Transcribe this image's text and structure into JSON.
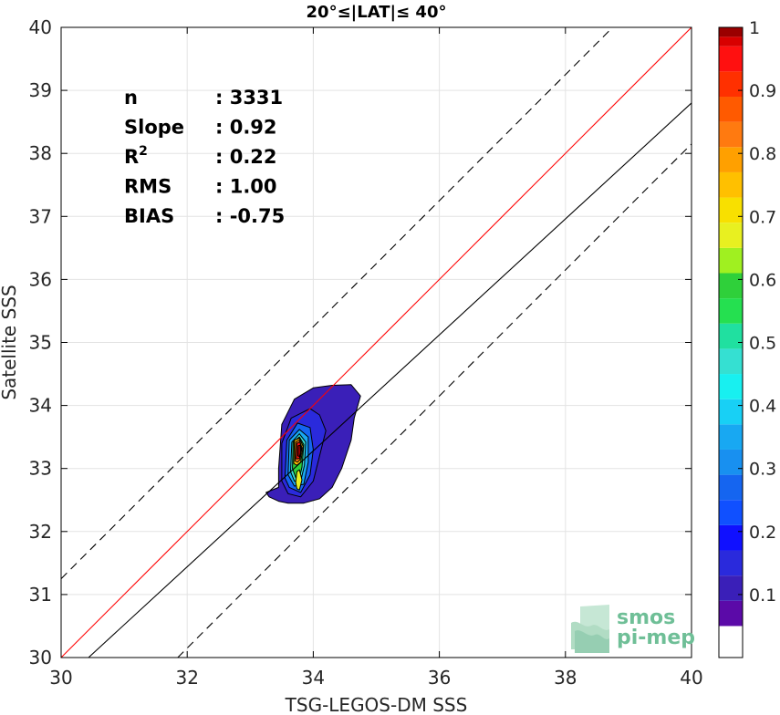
{
  "chart_data": {
    "type": "heatmap",
    "title": "20°≤|LAT|≤ 40°",
    "xlabel": "TSG-LEGOS-DM SSS",
    "ylabel": "Satellite SSS",
    "xlim": [
      30,
      40
    ],
    "ylim": [
      30,
      40
    ],
    "xticks": [
      30,
      32,
      34,
      36,
      38,
      40
    ],
    "yticks": [
      30,
      31,
      32,
      33,
      34,
      35,
      36,
      37,
      38,
      39,
      40
    ],
    "grid": true,
    "stats": [
      {
        "label": "n",
        "value": ": 3331"
      },
      {
        "label": "Slope",
        "value": ": 0.92"
      },
      {
        "label": "R",
        "sup": "2",
        "value": ": 0.22"
      },
      {
        "label": "RMS",
        "value": ": 1.00"
      },
      {
        "label": "BIAS",
        "value": ": -0.75"
      }
    ],
    "lines": {
      "identity": {
        "slope": 1,
        "intercept": 0,
        "color": "#ff0000"
      },
      "fit": {
        "slope": 0.92,
        "intercept": 2.0,
        "color": "#000000"
      },
      "envelope_upper": {
        "slope": 1,
        "intercept": 1.25,
        "style": "dashed"
      },
      "envelope_lower": {
        "slope": 1,
        "intercept": -1.85,
        "style": "dashed"
      }
    },
    "contours": [
      {
        "level": 0.05,
        "color": "#3a1fb8",
        "points": [
          [
            33.25,
            32.62
          ],
          [
            33.45,
            32.7
          ],
          [
            33.45,
            33.0
          ],
          [
            33.5,
            33.7
          ],
          [
            33.7,
            34.1
          ],
          [
            34.0,
            34.28
          ],
          [
            34.3,
            34.32
          ],
          [
            34.6,
            34.33
          ],
          [
            34.75,
            34.15
          ],
          [
            34.65,
            33.8
          ],
          [
            34.6,
            33.45
          ],
          [
            34.45,
            33.0
          ],
          [
            34.3,
            32.7
          ],
          [
            34.1,
            32.52
          ],
          [
            33.85,
            32.45
          ],
          [
            33.6,
            32.45
          ],
          [
            33.45,
            32.48
          ],
          [
            33.3,
            32.55
          ]
        ]
      },
      {
        "level": 0.1,
        "color": "#2a2adc",
        "points": [
          [
            33.5,
            32.8
          ],
          [
            33.5,
            33.4
          ],
          [
            33.65,
            33.8
          ],
          [
            33.95,
            33.95
          ],
          [
            34.1,
            33.85
          ],
          [
            34.2,
            33.6
          ],
          [
            34.1,
            33.2
          ],
          [
            34.0,
            32.8
          ],
          [
            33.8,
            32.55
          ],
          [
            33.6,
            32.6
          ]
        ]
      },
      {
        "level": 0.2,
        "color": "#1565f0",
        "points": [
          [
            33.55,
            32.85
          ],
          [
            33.58,
            33.45
          ],
          [
            33.75,
            33.72
          ],
          [
            33.95,
            33.65
          ],
          [
            34.0,
            33.3
          ],
          [
            33.95,
            32.9
          ],
          [
            33.8,
            32.62
          ],
          [
            33.62,
            32.7
          ]
        ]
      },
      {
        "level": 0.3,
        "color": "#18a8f2",
        "points": [
          [
            33.6,
            32.9
          ],
          [
            33.62,
            33.45
          ],
          [
            33.78,
            33.62
          ],
          [
            33.92,
            33.5
          ],
          [
            33.92,
            33.1
          ],
          [
            33.85,
            32.75
          ],
          [
            33.7,
            32.72
          ]
        ]
      },
      {
        "level": 0.4,
        "color": "#35e0d2",
        "points": [
          [
            33.64,
            32.95
          ],
          [
            33.66,
            33.42
          ],
          [
            33.78,
            33.55
          ],
          [
            33.88,
            33.42
          ],
          [
            33.86,
            33.05
          ],
          [
            33.8,
            32.8
          ],
          [
            33.7,
            32.8
          ]
        ]
      },
      {
        "level": 0.5,
        "color": "#2fd03a",
        "points": [
          [
            33.67,
            33.0
          ],
          [
            33.68,
            33.42
          ],
          [
            33.78,
            33.5
          ],
          [
            33.85,
            33.38
          ],
          [
            33.82,
            33.02
          ],
          [
            33.78,
            32.85
          ],
          [
            33.72,
            32.86
          ]
        ]
      },
      {
        "level": 0.6,
        "color": "#e8f020",
        "points": [
          [
            33.72,
            32.78
          ],
          [
            33.74,
            32.95
          ],
          [
            33.78,
            32.98
          ],
          [
            33.82,
            32.82
          ],
          [
            33.78,
            32.66
          ],
          [
            33.74,
            32.68
          ]
        ]
      },
      {
        "level": 0.7,
        "color": "#ffc000",
        "points": [
          [
            33.69,
            33.08
          ],
          [
            33.7,
            33.45
          ],
          [
            33.78,
            33.48
          ],
          [
            33.84,
            33.35
          ],
          [
            33.8,
            33.1
          ],
          [
            33.74,
            33.05
          ]
        ]
      },
      {
        "level": 0.8,
        "color": "#ff7a10",
        "points": [
          [
            33.71,
            33.12
          ],
          [
            33.72,
            33.42
          ],
          [
            33.78,
            33.45
          ],
          [
            33.82,
            33.33
          ],
          [
            33.79,
            33.14
          ],
          [
            33.75,
            33.1
          ]
        ]
      },
      {
        "level": 0.9,
        "color": "#ff1010",
        "points": [
          [
            33.73,
            33.15
          ],
          [
            33.74,
            33.4
          ],
          [
            33.79,
            33.42
          ],
          [
            33.81,
            33.3
          ],
          [
            33.78,
            33.16
          ]
        ]
      },
      {
        "level": 1.0,
        "color": "#9a0000",
        "points": [
          [
            33.755,
            33.2
          ],
          [
            33.76,
            33.36
          ],
          [
            33.795,
            33.37
          ],
          [
            33.8,
            33.25
          ],
          [
            33.78,
            33.19
          ]
        ]
      }
    ],
    "colorbar": {
      "ticks": [
        0.1,
        0.2,
        0.3,
        0.4,
        0.5,
        0.6,
        0.7,
        0.8,
        0.9,
        1
      ],
      "tick_labels": [
        "0.1",
        "0.2",
        "0.3",
        "0.4",
        "0.5",
        "0.6",
        "0.7",
        "0.8",
        "0.9",
        "1"
      ],
      "range": [
        0,
        1
      ],
      "bands": [
        "#ffffff",
        "#5b0aa8",
        "#3a1fb8",
        "#2a2adc",
        "#1010ff",
        "#1050ff",
        "#1565f0",
        "#1890f0",
        "#18a8f2",
        "#18d0f5",
        "#18f0f0",
        "#35e0d2",
        "#20e0a0",
        "#25e050",
        "#2fd03a",
        "#a0f020",
        "#e8f020",
        "#f8e000",
        "#ffc000",
        "#ffa000",
        "#ff7a10",
        "#ff5a00",
        "#ff3000",
        "#ff1010",
        "#d80000",
        "#9a0000"
      ],
      "band_edges": [
        0,
        0.05,
        0.09,
        0.13,
        0.17,
        0.21,
        0.25,
        0.29,
        0.33,
        0.37,
        0.41,
        0.45,
        0.49,
        0.53,
        0.57,
        0.61,
        0.65,
        0.69,
        0.73,
        0.77,
        0.81,
        0.85,
        0.89,
        0.93,
        0.97,
        0.985,
        1
      ]
    },
    "logo": {
      "line1": "smos",
      "line2": "pi-mep",
      "color": "#6fbf97"
    }
  }
}
